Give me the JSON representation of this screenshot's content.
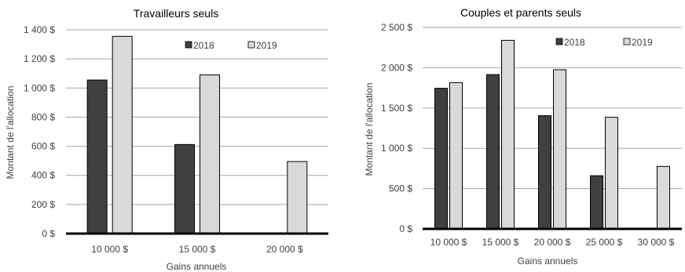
{
  "chart_data": [
    {
      "type": "bar",
      "title": "Travailleurs seuls",
      "xlabel": "Gains annuels",
      "ylabel": "Montant de l'allocation",
      "categories": [
        "10 000 $",
        "15 000 $",
        "20 000 $"
      ],
      "ylim": [
        0,
        1400
      ],
      "yticks": [
        "0 $",
        "200 $",
        "400 $",
        "600 $",
        "800 $",
        "1 000 $",
        "1 200 $",
        "1 400 $"
      ],
      "ytick_values": [
        0,
        200,
        400,
        600,
        800,
        1000,
        1200,
        1400
      ],
      "grid": true,
      "legend_position": "top-right",
      "series": [
        {
          "name": "2018",
          "values": [
            1055,
            612,
            0
          ],
          "color": "#404040"
        },
        {
          "name": "2019",
          "values": [
            1355,
            1090,
            495
          ],
          "color": "#d9d9d9"
        }
      ]
    },
    {
      "type": "bar",
      "title": "Couples et parents seuls",
      "xlabel": "Gains annuels",
      "ylabel": "Montant de l'allocation",
      "categories": [
        "10 000 $",
        "15 000 $",
        "20 000 $",
        "25 000 $",
        "30 000 $"
      ],
      "ylim": [
        0,
        2500
      ],
      "yticks": [
        "0 $",
        "500 $",
        "1 000 $",
        "1 500 $",
        "2 000 $",
        "2 500 $"
      ],
      "ytick_values": [
        0,
        500,
        1000,
        1500,
        2000,
        2500
      ],
      "grid": true,
      "legend_position": "top-right",
      "series": [
        {
          "name": "2018",
          "values": [
            1745,
            1915,
            1405,
            660,
            0
          ],
          "color": "#404040"
        },
        {
          "name": "2019",
          "values": [
            1815,
            2340,
            1975,
            1385,
            775
          ],
          "color": "#d9d9d9"
        }
      ]
    }
  ]
}
